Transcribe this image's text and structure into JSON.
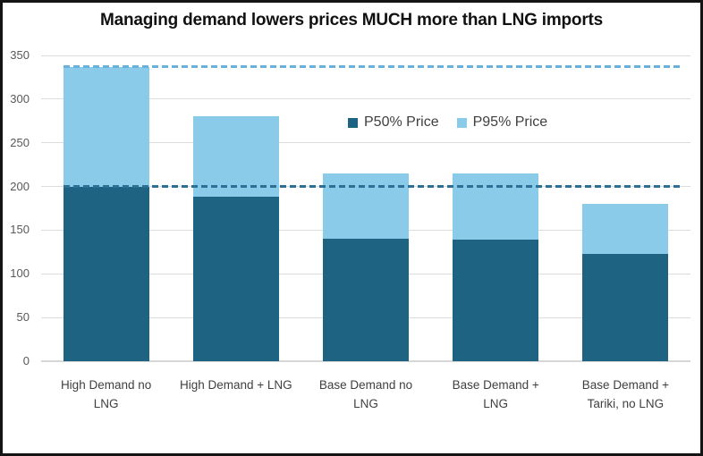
{
  "title": "Managing demand lowers prices MUCH more than LNG imports",
  "colors": {
    "p50_bar": "#1f6382",
    "p95_bar": "#89cbe9",
    "ref_line_top": "#68b1dc",
    "ref_line_bottom": "#2d7096",
    "gridline": "#dcdcdc",
    "axis_text": "#595959",
    "category_text": "#3f3f3f",
    "frame_border": "#141414"
  },
  "chart_data": {
    "type": "bar",
    "stacked": true,
    "title": "Managing demand lowers prices MUCH more than LNG imports",
    "categories": [
      "High Demand no LNG",
      "High Demand + LNG",
      "Base Demand no LNG",
      "Base Demand + LNG",
      "Base Demand + Tariki, no LNG"
    ],
    "category_lines": [
      [
        "High Demand no",
        "LNG"
      ],
      [
        "High Demand + LNG"
      ],
      [
        "Base Demand no",
        "LNG"
      ],
      [
        "Base Demand +",
        "LNG"
      ],
      [
        "Base Demand +",
        "Tariki, no LNG"
      ]
    ],
    "series": [
      {
        "name": "P50% Price",
        "color": "#1f6382",
        "values": [
          200,
          188,
          140,
          139,
          123
        ]
      },
      {
        "name": "P95% Price",
        "color": "#89cbe9",
        "values": [
          337,
          280,
          215,
          215,
          180
        ]
      }
    ],
    "stacking_note": "P50 segment drawn from 0 to P50 value; P95 segment drawn from P50 value up to P95 value",
    "reference_lines": [
      {
        "value": 337,
        "style": "dashed",
        "color": "#68b1dc"
      },
      {
        "value": 200,
        "style": "dashed",
        "color": "#2d7096"
      }
    ],
    "y_ticks": [
      0,
      50,
      100,
      150,
      200,
      250,
      300,
      350
    ],
    "ylim": [
      0,
      350
    ],
    "xlabel": "",
    "ylabel": "",
    "grid": true,
    "legend_position": "inside-top-center",
    "legend": [
      {
        "label": "P50% Price",
        "color": "#1f6382"
      },
      {
        "label": "P95% Price",
        "color": "#89cbe9"
      }
    ]
  }
}
